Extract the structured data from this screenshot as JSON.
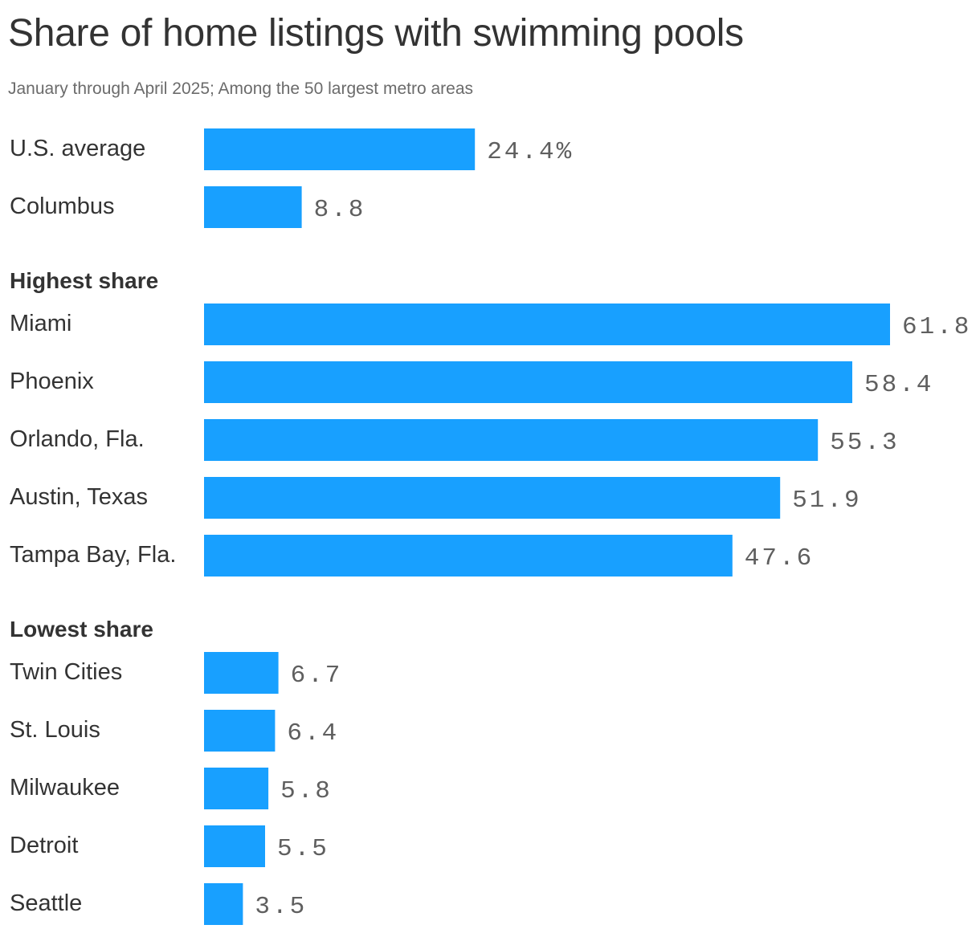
{
  "header": {
    "title": "Share of home listings with swimming pools",
    "subtitle": "January through April 2025; Among the 50 largest metro areas"
  },
  "chart_data": {
    "type": "bar",
    "orientation": "horizontal",
    "title": "Share of home listings with swimming pools",
    "subtitle": "January through April 2025; Among the 50 largest metro areas",
    "unit": "%",
    "bar_color": "#18a0ff",
    "xlim": [
      0,
      61.8
    ],
    "grid": false,
    "legend": "none",
    "groups": [
      {
        "label": "",
        "rows": [
          {
            "category": "U.S. average",
            "value": 24.4,
            "display": "24.4%"
          },
          {
            "category": "Columbus",
            "value": 8.8,
            "display": "8.8"
          }
        ]
      },
      {
        "label": "Highest share",
        "rows": [
          {
            "category": "Miami",
            "value": 61.8,
            "display": "61.8"
          },
          {
            "category": "Phoenix",
            "value": 58.4,
            "display": "58.4"
          },
          {
            "category": "Orlando, Fla.",
            "value": 55.3,
            "display": "55.3"
          },
          {
            "category": "Austin, Texas",
            "value": 51.9,
            "display": "51.9"
          },
          {
            "category": "Tampa Bay, Fla.",
            "value": 47.6,
            "display": "47.6"
          }
        ]
      },
      {
        "label": "Lowest share",
        "rows": [
          {
            "category": "Twin Cities",
            "value": 6.7,
            "display": "6.7"
          },
          {
            "category": "St. Louis",
            "value": 6.4,
            "display": "6.4"
          },
          {
            "category": "Milwaukee",
            "value": 5.8,
            "display": "5.8"
          },
          {
            "category": "Detroit",
            "value": 5.5,
            "display": "5.5"
          },
          {
            "category": "Seattle",
            "value": 3.5,
            "display": "3.5"
          }
        ]
      }
    ]
  }
}
